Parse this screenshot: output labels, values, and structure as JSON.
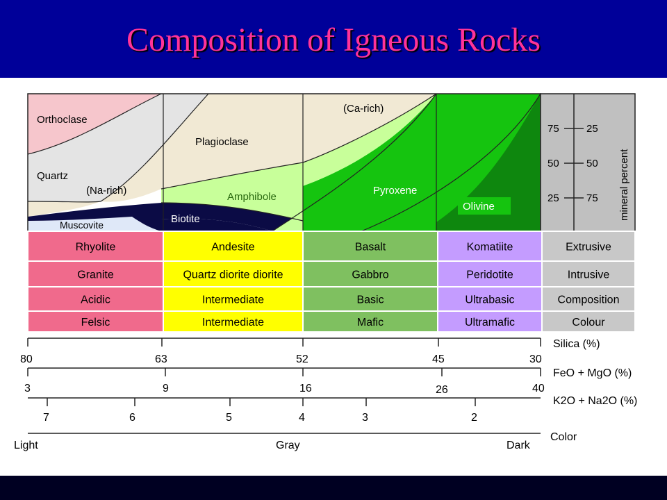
{
  "title": "Composition of Igneous Rocks",
  "minerals": {
    "orthoclase": "Orthoclase",
    "quartz": "Quartz",
    "na_rich": "(Na-rich)",
    "muscovite": "Muscovite",
    "biotite": "Biotite",
    "plagioclase": "Plagioclase",
    "ca_rich": "(Ca-rich)",
    "amphibole": "Amphibole",
    "pyroxene": "Pyroxene",
    "olivine": "Olivine"
  },
  "scale": {
    "left_values": [
      "75",
      "50",
      "25"
    ],
    "right_values": [
      "25",
      "50",
      "75"
    ],
    "label": "mineral percent"
  },
  "table": {
    "rows": [
      {
        "cells": [
          "Rhyolite",
          "Andesite",
          "Basalt",
          "Komatiite"
        ],
        "label": "Extrusive"
      },
      {
        "cells": [
          "Granite",
          "Quartz diorite   diorite",
          "Gabbro",
          "Peridotite"
        ],
        "label": "Intrusive"
      },
      {
        "cells": [
          "Acidic",
          "Intermediate",
          "Basic",
          "Ultrabasic"
        ],
        "label": "Composition"
      },
      {
        "cells": [
          "Felsic",
          "Intermediate",
          "Mafic",
          "Ultramafic"
        ],
        "label": "Colour"
      }
    ],
    "column_colors": [
      "#f06a8c",
      "#ffff00",
      "#7fc060",
      "#c49cff"
    ],
    "label_color": "#c8c8c8"
  },
  "axes": {
    "silica": {
      "label": "Silica (%)",
      "ticks": [
        "80",
        "63",
        "52",
        "45",
        "30"
      ]
    },
    "femg": {
      "label": "FeO + MgO (%)",
      "ticks": [
        "3",
        "9",
        "16",
        "26",
        "40"
      ]
    },
    "alkali": {
      "label": "K2O + Na2O (%)",
      "ticks": [
        "7",
        "6",
        "5",
        "4",
        "3",
        "2"
      ]
    },
    "color": {
      "label": "Color",
      "ticks": [
        "Light",
        "Gray",
        "Dark"
      ]
    }
  },
  "colors": {
    "title": "#ff3399",
    "title_bar": "#000099",
    "orthoclase": "#f6c6cc",
    "quartz": "#e4e4e4",
    "plagioclase": "#f1e9d4",
    "muscovite": "#dfe8f8",
    "biotite": "#0b0b45",
    "amphibole": "#c8ff9a",
    "pyroxene": "#15c40f",
    "olivine": "#0e870e",
    "scale_panel": "#c0c0c0"
  }
}
